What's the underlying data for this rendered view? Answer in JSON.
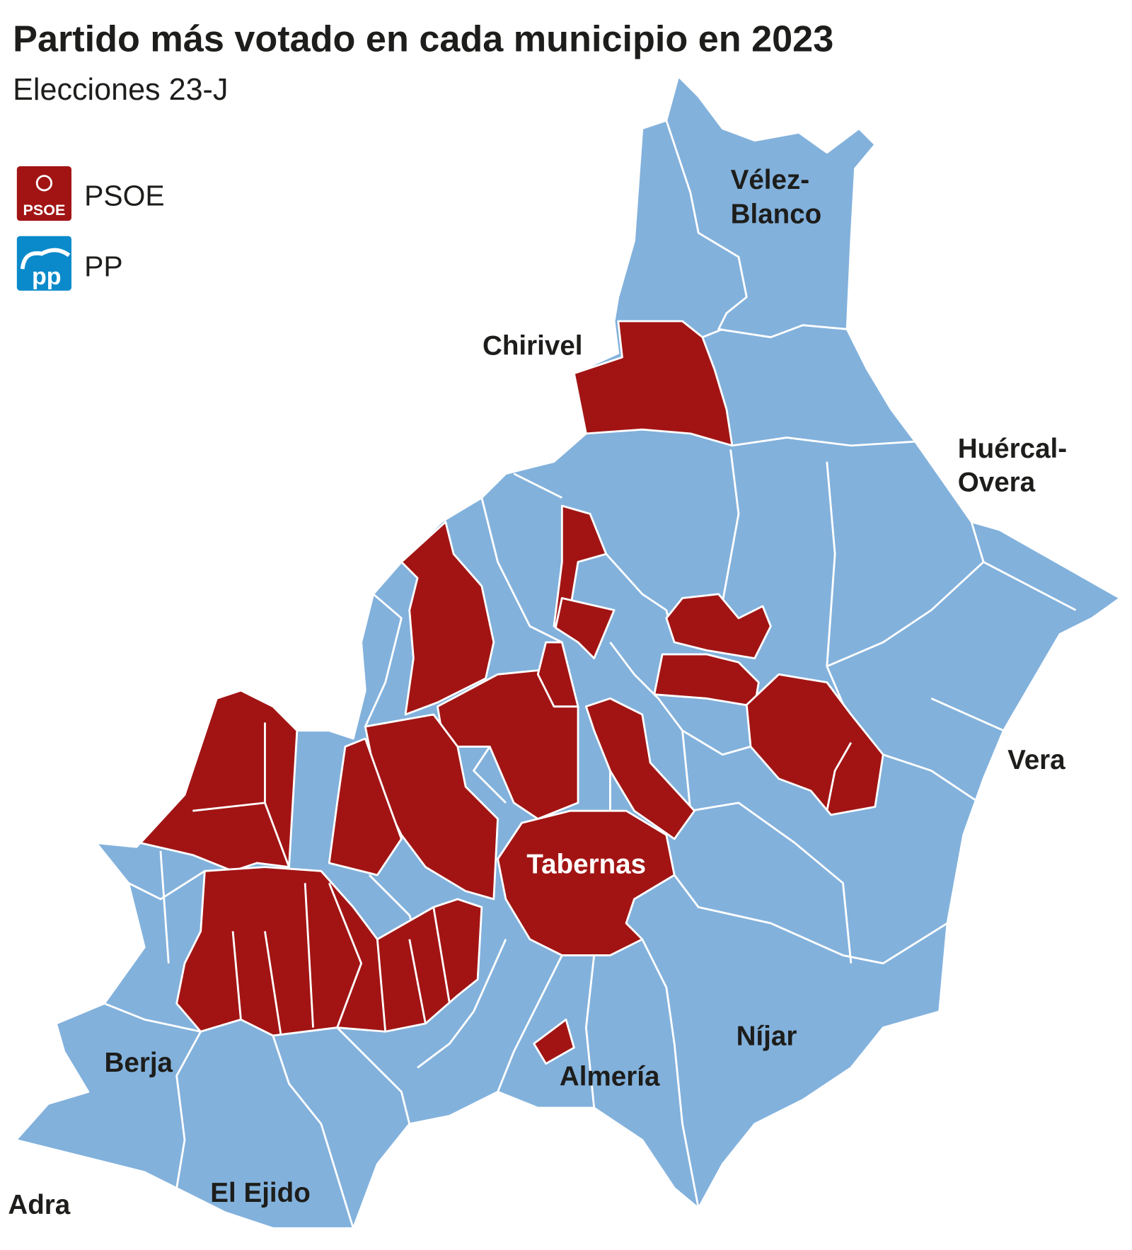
{
  "title": "Partido más votado en cada municipio en 2023",
  "subtitle": "Elecciones 23-J",
  "legend": [
    {
      "party": "PSOE",
      "color": "#a21414",
      "logo_text": "PSOE",
      "icon": "psoe-rose-logo"
    },
    {
      "party": "PP",
      "color": "#0b8acb",
      "logo_text": "pp",
      "icon": "pp-gull-logo"
    }
  ],
  "map_colors": {
    "PSOE": "#a21414",
    "PP": "#82b1dc"
  },
  "labels": {
    "velez_blanco_1": "Vélez-",
    "velez_blanco_2": "Blanco",
    "chirivel": "Chirivel",
    "huercal_overa_1": "Huércal-",
    "huercal_overa_2": "Overa",
    "vera": "Vera",
    "tabernas": "Tabernas",
    "nijar": "Níjar",
    "almeria": "Almería",
    "berja": "Berja",
    "el_ejido": "El Ejido",
    "adra": "Adra"
  }
}
